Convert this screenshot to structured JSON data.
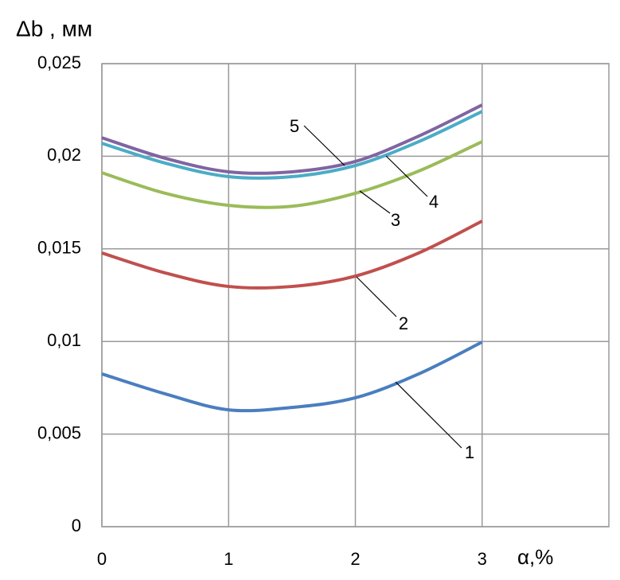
{
  "chart_data": {
    "type": "line",
    "y_label": "Δb , мм",
    "x_label": "α,%",
    "x": [
      0,
      0.5,
      1,
      1.5,
      2,
      2.5,
      3
    ],
    "series": [
      {
        "name": "1",
        "color": "#4a7ebf",
        "values": [
          0.00825,
          0.00717,
          0.00631,
          0.00644,
          0.00696,
          0.00825,
          0.00997
        ]
      },
      {
        "name": "2",
        "color": "#c0504d",
        "values": [
          0.01478,
          0.0137,
          0.01297,
          0.01297,
          0.01353,
          0.01478,
          0.0165
        ]
      },
      {
        "name": "3",
        "color": "#9bbb59",
        "values": [
          0.01911,
          0.018,
          0.01735,
          0.0173,
          0.018,
          0.0192,
          0.02079
        ]
      },
      {
        "name": "4",
        "color": "#4bacc6",
        "values": [
          0.0207,
          0.01963,
          0.0189,
          0.0189,
          0.0195,
          0.02079,
          0.02242
        ]
      },
      {
        "name": "5",
        "color": "#8064a2",
        "values": [
          0.021,
          0.01989,
          0.01916,
          0.01916,
          0.01972,
          0.02109,
          0.02277
        ]
      }
    ],
    "xlim": [
      0,
      4
    ],
    "xticks": [
      0,
      1,
      2,
      3
    ],
    "ylim": [
      0,
      0.025
    ],
    "yticks": [
      0,
      {
        "value": 0.005,
        "label": "0,005"
      },
      {
        "value": 0.01,
        "label": "0,01"
      },
      {
        "value": 0.015,
        "label": "0,015"
      },
      {
        "value": 0.02,
        "label": "0,02"
      },
      {
        "value": 0.025,
        "label": "0,025"
      }
    ],
    "grid": true
  }
}
